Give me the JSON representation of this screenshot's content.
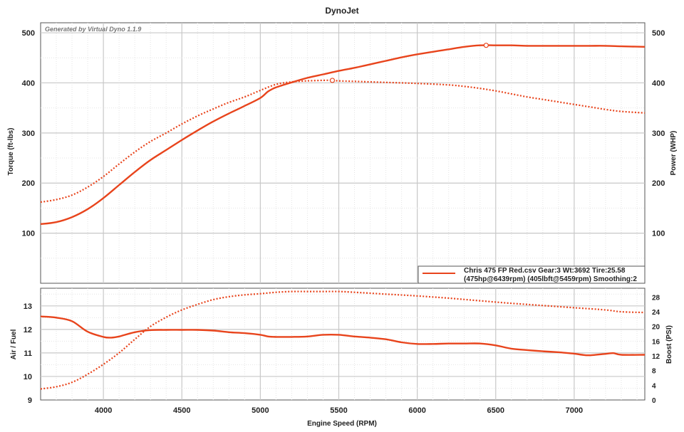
{
  "chart_data": [
    {
      "type": "line",
      "title": "DynoJet",
      "watermark": "Generated by Virtual Dyno 1.1.9",
      "xlabel": "Engine Speed (RPM)",
      "ylabel_left": "Torque (ft-lbs)",
      "ylabel_right": "Power (WHP)",
      "xlim": [
        3600,
        7450
      ],
      "ylim_left": [
        0,
        520
      ],
      "ylim_right": [
        0,
        520
      ],
      "x_ticks": [
        4000,
        4500,
        5000,
        5500,
        6000,
        6500,
        7000
      ],
      "y_ticks_left": [
        100,
        200,
        300,
        400,
        500
      ],
      "y_ticks_right": [
        100,
        200,
        300,
        400,
        500
      ],
      "grid": true,
      "legend": {
        "placement": "bottom-right",
        "line1": "Chris 475 FP Red.csv Gear:3 Wt:3692 Tire:25.58",
        "line2": "(475hp@6439rpm) (405lbft@5459rpm) Smoothing:2"
      },
      "series": [
        {
          "key": "power",
          "style": "solid",
          "axis": "right",
          "color": "#e8441c",
          "x": [
            3600,
            3700,
            3800,
            3900,
            4000,
            4100,
            4200,
            4300,
            4400,
            4500,
            4600,
            4700,
            4800,
            4900,
            5000,
            5050,
            5100,
            5200,
            5300,
            5400,
            5500,
            5600,
            5700,
            5800,
            5900,
            6000,
            6100,
            6200,
            6300,
            6400,
            6500,
            6600,
            6700,
            6800,
            6900,
            7000,
            7100,
            7200,
            7300,
            7450
          ],
          "values": [
            118,
            122,
            132,
            148,
            170,
            196,
            222,
            246,
            266,
            286,
            305,
            323,
            339,
            354,
            370,
            383,
            391,
            401,
            410,
            417,
            424,
            430,
            437,
            444,
            451,
            457,
            462,
            467,
            472,
            475,
            475,
            475,
            474,
            474,
            474,
            474,
            474,
            474,
            473,
            472
          ]
        },
        {
          "key": "torque",
          "style": "dotted",
          "axis": "left",
          "color": "#e8441c",
          "x": [
            3600,
            3700,
            3800,
            3900,
            4000,
            4100,
            4200,
            4300,
            4400,
            4500,
            4600,
            4700,
            4800,
            4900,
            5000,
            5100,
            5200,
            5300,
            5400,
            5459,
            5500,
            5600,
            5800,
            6000,
            6200,
            6300,
            6400,
            6500,
            6600,
            6700,
            6800,
            6900,
            7000,
            7100,
            7200,
            7300,
            7450
          ],
          "values": [
            162,
            167,
            176,
            192,
            213,
            238,
            262,
            283,
            300,
            318,
            334,
            348,
            361,
            372,
            385,
            397,
            402,
            404,
            405,
            405,
            404,
            403,
            401,
            399,
            396,
            393,
            389,
            384,
            378,
            372,
            367,
            362,
            357,
            352,
            347,
            343,
            340
          ]
        }
      ],
      "markers": [
        {
          "series": "power",
          "x": 6439,
          "y": 475
        },
        {
          "series": "torque",
          "x": 5459,
          "y": 405
        }
      ]
    },
    {
      "type": "line",
      "xlabel": "Engine Speed (RPM)",
      "ylabel_left": "Air / Fuel",
      "ylabel_right": "Boost (PSI)",
      "xlim": [
        3600,
        7450
      ],
      "ylim_left": [
        9,
        13.75
      ],
      "ylim_right": [
        0,
        30.4
      ],
      "x_ticks": [
        4000,
        4500,
        5000,
        5500,
        6000,
        6500,
        7000
      ],
      "y_ticks_left": [
        9,
        10,
        11,
        12,
        13
      ],
      "y_ticks_right": [
        0,
        4,
        8,
        12,
        16,
        20,
        24,
        28
      ],
      "grid": true,
      "series": [
        {
          "key": "afr",
          "style": "solid",
          "axis": "left",
          "color": "#e8441c",
          "x": [
            3600,
            3700,
            3800,
            3900,
            4000,
            4050,
            4100,
            4200,
            4300,
            4400,
            4500,
            4600,
            4700,
            4800,
            4900,
            5000,
            5050,
            5100,
            5200,
            5300,
            5400,
            5500,
            5600,
            5700,
            5800,
            5900,
            6000,
            6100,
            6200,
            6300,
            6400,
            6500,
            6600,
            6700,
            6800,
            6900,
            7000,
            7050,
            7100,
            7200,
            7250,
            7300,
            7450
          ],
          "values": [
            12.55,
            12.5,
            12.35,
            11.9,
            11.68,
            11.65,
            11.7,
            11.88,
            11.97,
            11.98,
            11.98,
            11.98,
            11.95,
            11.88,
            11.84,
            11.77,
            11.7,
            11.68,
            11.68,
            11.7,
            11.77,
            11.77,
            11.7,
            11.65,
            11.58,
            11.45,
            11.38,
            11.38,
            11.4,
            11.4,
            11.4,
            11.32,
            11.18,
            11.12,
            11.07,
            11.03,
            10.97,
            10.92,
            10.9,
            10.96,
            10.99,
            10.92,
            10.92
          ]
        },
        {
          "key": "boost",
          "style": "dotted",
          "axis": "right",
          "color": "#e8441c",
          "x": [
            3600,
            3700,
            3800,
            3900,
            4000,
            4100,
            4200,
            4300,
            4400,
            4500,
            4600,
            4700,
            4800,
            4900,
            5000,
            5100,
            5200,
            5300,
            5400,
            5500,
            5600,
            5800,
            6000,
            6200,
            6400,
            6600,
            6800,
            7000,
            7200,
            7300,
            7450
          ],
          "values": [
            3.0,
            3.6,
            4.8,
            7.0,
            9.7,
            12.8,
            16.5,
            20.0,
            22.5,
            24.5,
            26.0,
            27.3,
            28.1,
            28.6,
            28.9,
            29.3,
            29.5,
            29.5,
            29.5,
            29.5,
            29.3,
            28.8,
            28.3,
            27.7,
            27.0,
            26.3,
            25.7,
            25.1,
            24.5,
            24.0,
            23.8
          ]
        }
      ]
    }
  ]
}
